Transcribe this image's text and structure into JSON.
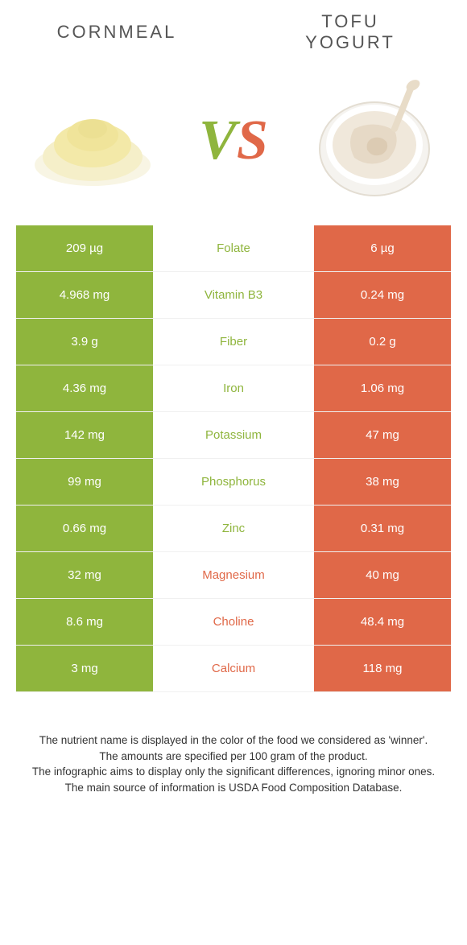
{
  "colors": {
    "left": "#8fb53d",
    "right": "#e06848",
    "bg": "#ffffff",
    "text": "#333333"
  },
  "header": {
    "left": "CORNMEAL",
    "right": "TOFU\nYOGURT"
  },
  "vs": {
    "v": "V",
    "s": "S"
  },
  "rows": [
    {
      "left": "209 µg",
      "label": "Folate",
      "right": "6 µg",
      "winner": "left"
    },
    {
      "left": "4.968 mg",
      "label": "Vitamin B3",
      "right": "0.24 mg",
      "winner": "left"
    },
    {
      "left": "3.9 g",
      "label": "Fiber",
      "right": "0.2 g",
      "winner": "left"
    },
    {
      "left": "4.36 mg",
      "label": "Iron",
      "right": "1.06 mg",
      "winner": "left"
    },
    {
      "left": "142 mg",
      "label": "Potassium",
      "right": "47 mg",
      "winner": "left"
    },
    {
      "left": "99 mg",
      "label": "Phosphorus",
      "right": "38 mg",
      "winner": "left"
    },
    {
      "left": "0.66 mg",
      "label": "Zinc",
      "right": "0.31 mg",
      "winner": "left"
    },
    {
      "left": "32 mg",
      "label": "Magnesium",
      "right": "40 mg",
      "winner": "right"
    },
    {
      "left": "8.6 mg",
      "label": "Choline",
      "right": "48.4 mg",
      "winner": "right"
    },
    {
      "left": "3 mg",
      "label": "Calcium",
      "right": "118 mg",
      "winner": "right"
    }
  ],
  "footer": {
    "l1": "The nutrient name is displayed in the color of the food we considered as 'winner'.",
    "l2": "The amounts are specified per 100 gram of the product.",
    "l3": "The infographic aims to display only the significant differences, ignoring minor ones.",
    "l4": "The main source of information is USDA Food Composition Database."
  }
}
